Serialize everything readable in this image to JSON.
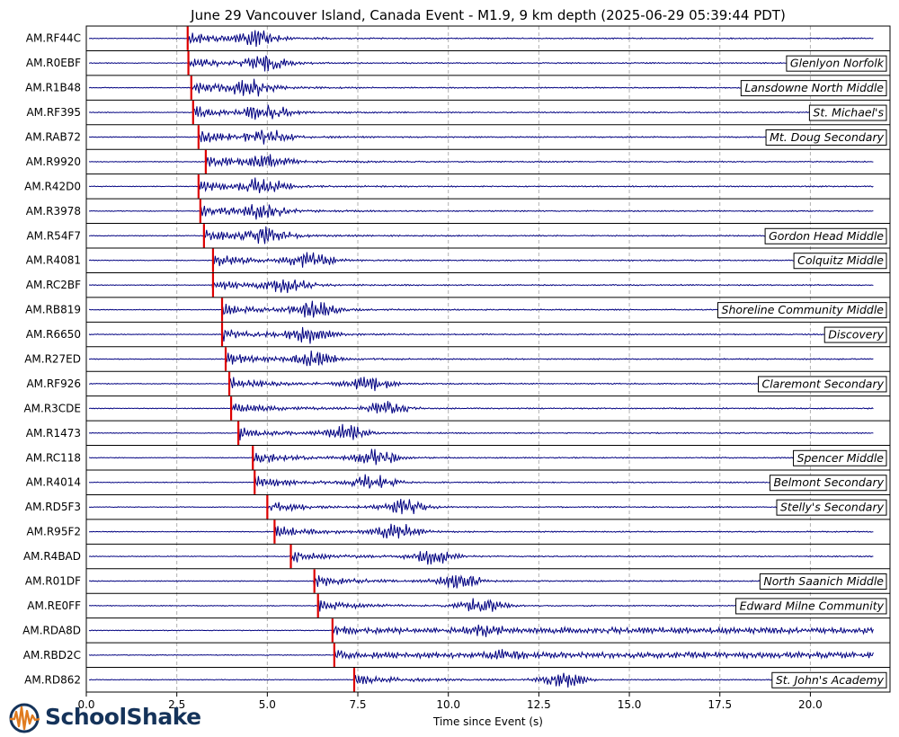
{
  "chart_data": {
    "type": "line",
    "title": "June 29 Vancouver Island, Canada  Event - M1.9, 9 km depth (2025-06-29 05:39:44 PDT)",
    "xlabel": "Time since Event (s)",
    "ylabel": "",
    "xlim": [
      0,
      22.2
    ],
    "xticks": [
      0,
      2.5,
      5,
      7.5,
      10,
      12.5,
      15,
      17.5,
      20
    ],
    "xtick_labels": [
      "0.0",
      "2.5",
      "5.0",
      "7.5",
      "10.0",
      "12.5",
      "15.0",
      "17.5",
      "20.0"
    ],
    "grid": "vertical dashed",
    "trace_color": "#000080",
    "pick_color": "#dd0000",
    "traces": [
      {
        "station": "AM.RF44C",
        "school": "",
        "p_arrival": 2.8,
        "burst": 4.7
      },
      {
        "station": "AM.R0EBF",
        "school": "Glenlyon Norfolk",
        "p_arrival": 2.82,
        "burst": 5.0
      },
      {
        "station": "AM.R1B48",
        "school": "Lansdowne North Middle",
        "p_arrival": 2.9,
        "burst": 4.55
      },
      {
        "station": "AM.RF395",
        "school": "St. Michael's",
        "p_arrival": 2.95,
        "burst": 5.0
      },
      {
        "station": "AM.RAB72",
        "school": "Mt. Doug Secondary",
        "p_arrival": 3.1,
        "burst": 5.0
      },
      {
        "station": "AM.R9920",
        "school": "",
        "p_arrival": 3.3,
        "burst": 5.0
      },
      {
        "station": "AM.R42D0",
        "school": "",
        "p_arrival": 3.1,
        "burst": 4.9
      },
      {
        "station": "AM.R3978",
        "school": "",
        "p_arrival": 3.15,
        "burst": 4.9
      },
      {
        "station": "AM.R54F7",
        "school": "Gordon Head Middle",
        "p_arrival": 3.25,
        "burst": 5.0
      },
      {
        "station": "AM.R4081",
        "school": "Colquitz Middle",
        "p_arrival": 3.5,
        "burst": 6.2
      },
      {
        "station": "AM.RC2BF",
        "school": "",
        "p_arrival": 3.5,
        "burst": 5.5
      },
      {
        "station": "AM.RB819",
        "school": "Shoreline Community Middle",
        "p_arrival": 3.75,
        "burst": 6.3
      },
      {
        "station": "AM.R6650",
        "school": "Discovery",
        "p_arrival": 3.75,
        "burst": 6.1
      },
      {
        "station": "AM.R27ED",
        "school": "",
        "p_arrival": 3.85,
        "burst": 6.3
      },
      {
        "station": "AM.RF926",
        "school": "Claremont Secondary",
        "p_arrival": 3.95,
        "burst": 7.8
      },
      {
        "station": "AM.R3CDE",
        "school": "",
        "p_arrival": 4.0,
        "burst": 8.3
      },
      {
        "station": "AM.R1473",
        "school": "",
        "p_arrival": 4.2,
        "burst": 7.2
      },
      {
        "station": "AM.RC118",
        "school": "Spencer Middle",
        "p_arrival": 4.6,
        "burst": 8.0
      },
      {
        "station": "AM.R4014",
        "school": "Belmont Secondary",
        "p_arrival": 4.65,
        "burst": 7.9
      },
      {
        "station": "AM.RD5F3",
        "school": "Stelly's Secondary",
        "p_arrival": 5.0,
        "burst": 8.8
      },
      {
        "station": "AM.R95F2",
        "school": "",
        "p_arrival": 5.2,
        "burst": 8.6
      },
      {
        "station": "AM.R4BAD",
        "school": "",
        "p_arrival": 5.65,
        "burst": 9.6
      },
      {
        "station": "AM.R01DF",
        "school": "North Saanich Middle",
        "p_arrival": 6.3,
        "burst": 10.3
      },
      {
        "station": "AM.RE0FF",
        "school": "Edward Milne Community",
        "p_arrival": 6.4,
        "burst": 10.9
      },
      {
        "station": "AM.RDA8D",
        "school": "",
        "p_arrival": 6.8,
        "burst": 11.0
      },
      {
        "station": "AM.RBD2C",
        "school": "",
        "p_arrival": 6.85,
        "burst": 11.6
      },
      {
        "station": "AM.RD862",
        "school": "St. John's Academy",
        "p_arrival": 7.4,
        "burst": 13.2
      }
    ]
  },
  "logo": {
    "text": "SchoolShake"
  }
}
